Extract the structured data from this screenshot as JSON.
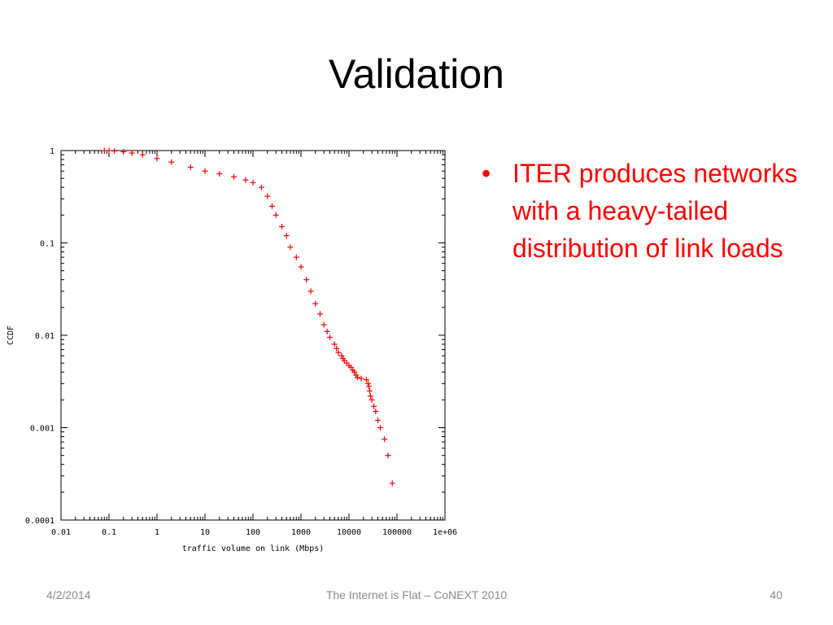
{
  "slide": {
    "title": "Validation",
    "bullets": [
      "ITER produces networks with a heavy-tailed distribution of link loads"
    ],
    "footer": {
      "date": "4/2/2014",
      "center": "The Internet is Flat – CoNEXT 2010",
      "page": "40"
    }
  },
  "colors": {
    "bullet_text": "#ff0000",
    "marker": "#ff0000",
    "footer_text": "#8b8b8b"
  },
  "chart_data": {
    "type": "scatter",
    "title": "",
    "xlabel": "traffic volume on link (Mbps)",
    "ylabel": "CCDF",
    "x_scale": "log",
    "y_scale": "log",
    "xlim": [
      0.01,
      1000000
    ],
    "ylim": [
      0.0001,
      1
    ],
    "x_ticks": [
      0.01,
      0.1,
      1,
      10,
      100,
      1000,
      10000,
      100000,
      1000000
    ],
    "x_tick_labels": [
      "0.01",
      "0.1",
      "1",
      "10",
      "100",
      "1000",
      "10000",
      "100000",
      "1e+06"
    ],
    "y_ticks": [
      1,
      0.1,
      0.01,
      0.001,
      0.0001
    ],
    "y_tick_labels": [
      "1",
      "0.1",
      "0.01",
      "0.001",
      "0.0001"
    ],
    "grid": false,
    "legend": "none",
    "marker": "+",
    "series": [
      {
        "x": [
          0.08,
          0.1,
          0.13,
          0.2,
          0.3,
          0.5,
          1,
          2,
          5,
          10,
          20,
          40,
          70,
          100,
          150,
          200,
          250,
          300,
          400,
          500,
          600,
          800,
          1000,
          1300,
          1600,
          2000,
          2500,
          3000,
          3500,
          4000,
          5000,
          5500,
          6000,
          7000,
          7500,
          8000,
          9000,
          10000,
          11000,
          12000,
          13000,
          14000,
          15000,
          18000,
          23000,
          25000,
          26000,
          27000,
          28000,
          30000,
          33000,
          36000,
          40000,
          45000,
          55000,
          65000,
          80000
        ],
        "y": [
          1,
          1,
          0.99,
          0.97,
          0.94,
          0.9,
          0.82,
          0.75,
          0.66,
          0.6,
          0.56,
          0.52,
          0.48,
          0.45,
          0.4,
          0.32,
          0.25,
          0.2,
          0.15,
          0.12,
          0.09,
          0.07,
          0.055,
          0.04,
          0.03,
          0.022,
          0.017,
          0.013,
          0.011,
          0.0095,
          0.008,
          0.0072,
          0.0065,
          0.006,
          0.0056,
          0.0053,
          0.005,
          0.0047,
          0.0045,
          0.0042,
          0.004,
          0.0037,
          0.0035,
          0.0034,
          0.0033,
          0.003,
          0.0028,
          0.0025,
          0.0022,
          0.002,
          0.0017,
          0.0015,
          0.0012,
          0.001,
          0.00075,
          0.0005,
          0.00025
        ]
      }
    ]
  }
}
